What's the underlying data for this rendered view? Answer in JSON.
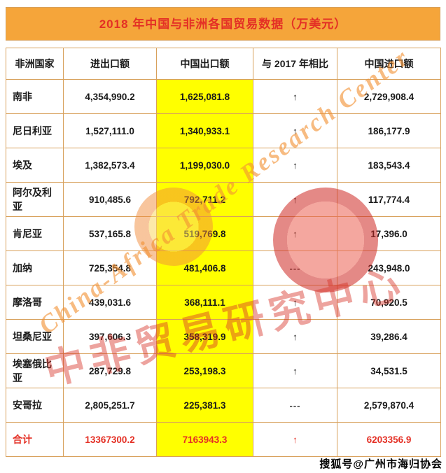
{
  "title": "2018 年中国与非洲各国贸易数据（万美元）",
  "chart_data": {
    "type": "table",
    "title": "2018 年中国与非洲各国贸易数据（万美元）",
    "unit": "万美元",
    "columns": [
      "非洲国家",
      "进出口额",
      "中国出口额",
      "与 2017 年相比",
      "中国进口额"
    ],
    "rows": [
      [
        "南非",
        "4,354,990.2",
        "1,625,081.8",
        "↑",
        "2,729,908.4"
      ],
      [
        "尼日利亚",
        "1,527,111.0",
        "1,340,933.1",
        "↑",
        "186,177.9"
      ],
      [
        "埃及",
        "1,382,573.4",
        "1,199,030.0",
        "↑",
        "183,543.4"
      ],
      [
        "阿尔及利亚",
        "910,485.6",
        "792,711.2",
        "↑",
        "117,774.4"
      ],
      [
        "肯尼亚",
        "537,165.8",
        "519,769.8",
        "↑",
        "17,396.0"
      ],
      [
        "加纳",
        "725,354.8",
        "481,406.8",
        "---",
        "243,948.0"
      ],
      [
        "摩洛哥",
        "439,031.6",
        "368,111.1",
        "↑",
        "70,920.5"
      ],
      [
        "坦桑尼亚",
        "397,606.3",
        "358,319.9",
        "↑",
        "39,286.4"
      ],
      [
        "埃塞俄比亚",
        "287,729.8",
        "253,198.3",
        "↑",
        "34,531.5"
      ],
      [
        "安哥拉",
        "2,805,251.7",
        "225,381.3",
        "---",
        "2,579,870.4"
      ]
    ],
    "total_row": [
      "合计",
      "13367300.2",
      "7163943.3",
      "↑",
      "6203356.9"
    ]
  },
  "watermark": {
    "line_en": "China-Africa Trade Research Center",
    "line_cn": "中非贸易研究中心"
  },
  "footer": "搜狐号@广州市海归协会",
  "colors": {
    "title_bg": "#f5a53a",
    "border": "#d8a15c",
    "highlight": "#ffff00",
    "red": "#e43025"
  }
}
